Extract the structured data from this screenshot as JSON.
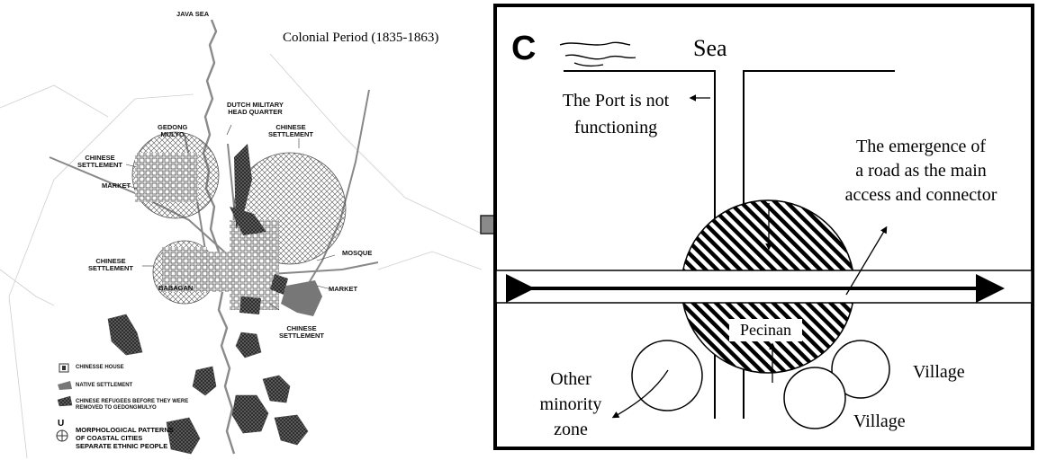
{
  "left_map": {
    "title": "Colonial Period (1835-1863)",
    "labels": {
      "java_sea": "JAVA SEA",
      "dutch_hq_line1": "DUTCH MILITARY",
      "dutch_hq_line2": "HEAD QUARTER",
      "gedong_line1": "GEDONG",
      "gedong_line2": "MULYO",
      "chinese_settlement_line1": "CHINESE",
      "chinese_settlement_line2": "SETTLEMENT",
      "market": "MARKET",
      "mosque": "MOSQUE",
      "babagan": "BABAGAN"
    },
    "legend": {
      "chinese_house": "CHINESSE HOUSE",
      "native_settlement": "NATIVE SETTLEMENT",
      "refugees": "CHINESE REFUGEES BEFORE THEY WERE REMOVED TO GEDONGMULYO",
      "compass_letter": "U",
      "caption_line1": "MORPHOLOGICAL PATTERNS",
      "caption_line2": "OF COASTAL CITIES",
      "caption_line3": "SEPARATE ETHNIC PEOPLE"
    }
  },
  "right_panel": {
    "letter": "C",
    "sea": "Sea",
    "port_line1": "The Port is not",
    "port_line2": "functioning",
    "road_line1": "The emergence of",
    "road_line2": "a road as the main",
    "road_line3": "access and connector",
    "pecinan": "Pecinan",
    "other_line1": "Other",
    "other_line2": "minority",
    "other_line3": "zone",
    "village_right": "Village",
    "village_bottom": "Village"
  }
}
